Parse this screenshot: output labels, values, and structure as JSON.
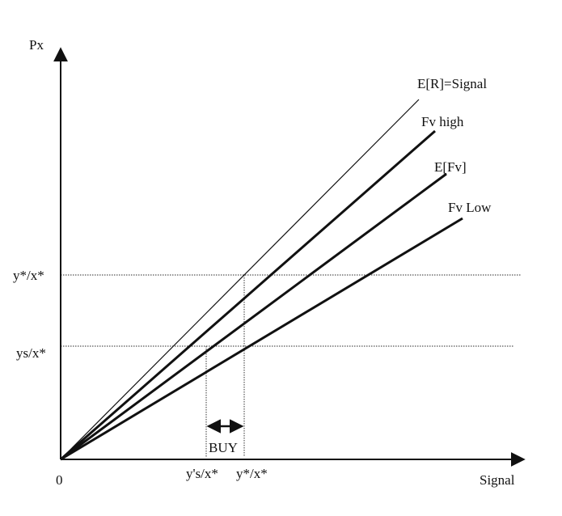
{
  "axes": {
    "y_label": "Px",
    "x_label": "Signal",
    "origin_label": "0"
  },
  "lines": {
    "er_signal": "E[R]=Signal",
    "fv_high": "Fv high",
    "efv": "E[Fv]",
    "fv_low": "Fv Low"
  },
  "levels": {
    "upper_y": "y*/x*",
    "lower_y": "ys/x*",
    "left_x": "y's/x*",
    "right_x": "y*/x*"
  },
  "region": {
    "buy": "BUY"
  },
  "colors": {
    "axis": "#111111",
    "line": "#111111",
    "guide": "#555555"
  }
}
